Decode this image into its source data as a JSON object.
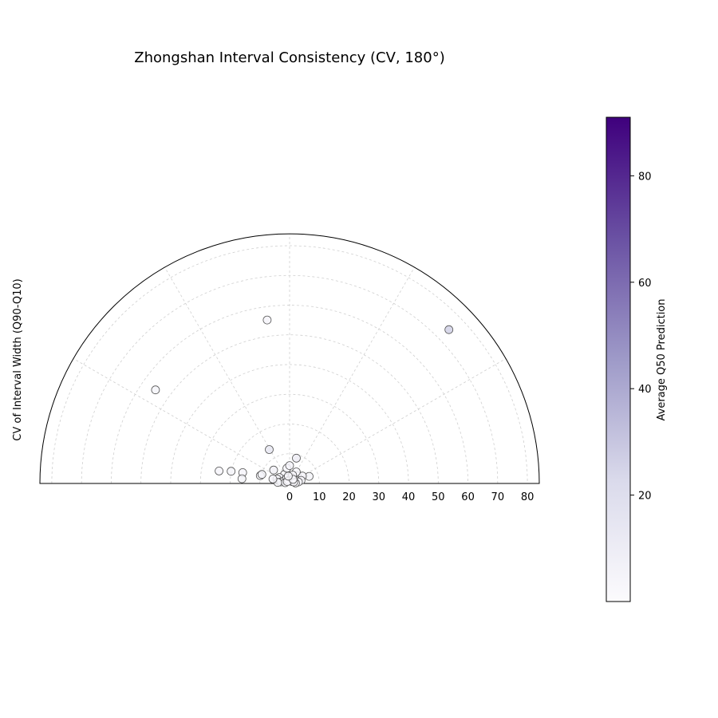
{
  "chart_data": {
    "type": "scatter",
    "projection": "polar-semicircle",
    "title": "Zhongshan Interval Consistency (CV, 180°)",
    "ylabel": "CV of Interval Width (Q90-Q10)",
    "radial_range": [
      0,
      84
    ],
    "radial_ticks": [
      "0",
      "10",
      "20",
      "30",
      "40",
      "50",
      "60",
      "70",
      "80"
    ],
    "theta_range_deg": [
      0,
      180
    ],
    "angular_grid_step_deg": 30,
    "grid": true,
    "colorbar": {
      "label": "Average Q50 Prediction",
      "colormap": "Purples",
      "range": [
        0,
        91
      ],
      "ticks": [
        "20",
        "40",
        "60",
        "80"
      ]
    },
    "points": [
      {
        "theta_deg": 44.0,
        "r": 74.5,
        "c": 26
      },
      {
        "theta_deg": 97.8,
        "r": 55.5,
        "c": 4
      },
      {
        "theta_deg": 145.1,
        "r": 55.0,
        "c": 5
      },
      {
        "theta_deg": 121.0,
        "r": 13.3,
        "c": 14
      },
      {
        "theta_deg": 168.2,
        "r": 20.1,
        "c": 5
      },
      {
        "theta_deg": 170.0,
        "r": 24.1,
        "c": 4
      },
      {
        "theta_deg": 167.0,
        "r": 16.2,
        "c": 4
      },
      {
        "theta_deg": 174.4,
        "r": 16.1,
        "c": 5
      },
      {
        "theta_deg": 165.0,
        "r": 10.2,
        "c": 3
      },
      {
        "theta_deg": 162.0,
        "r": 9.8,
        "c": 5
      },
      {
        "theta_deg": 75.0,
        "r": 8.8,
        "c": 10
      },
      {
        "theta_deg": 45.0,
        "r": 3.6,
        "c": 5
      },
      {
        "theta_deg": 20.0,
        "r": 7.0,
        "c": 5
      },
      {
        "theta_deg": 30.0,
        "r": 5.0,
        "c": 4
      },
      {
        "theta_deg": 120.0,
        "r": 3.5,
        "c": 3
      },
      {
        "theta_deg": 150.0,
        "r": 4.0,
        "c": 4
      },
      {
        "theta_deg": 140.0,
        "r": 7.0,
        "c": 7
      },
      {
        "theta_deg": 100.0,
        "r": 5.2,
        "c": 3
      },
      {
        "theta_deg": 90.0,
        "r": 6.0,
        "c": 4
      },
      {
        "theta_deg": 60.0,
        "r": 4.5,
        "c": 3
      },
      {
        "theta_deg": 160.0,
        "r": 4.5,
        "c": 4
      },
      {
        "theta_deg": 170.0,
        "r": 3.0,
        "c": 6
      },
      {
        "theta_deg": 150.0,
        "r": 2.0,
        "c": 4
      },
      {
        "theta_deg": 30.0,
        "r": 2.2,
        "c": 3
      },
      {
        "theta_deg": 15.0,
        "r": 4.0,
        "c": 4
      },
      {
        "theta_deg": 10.0,
        "r": 3.0,
        "c": 3
      },
      {
        "theta_deg": 60.0,
        "r": 2.0,
        "c": 4
      },
      {
        "theta_deg": 120.0,
        "r": 2.0,
        "c": 4
      },
      {
        "theta_deg": 80.0,
        "r": 1.5,
        "c": 3
      },
      {
        "theta_deg": 170.0,
        "r": 1.5,
        "c": 5
      },
      {
        "theta_deg": 5.0,
        "r": 2.0,
        "c": 3
      },
      {
        "theta_deg": 40.0,
        "r": 1.0,
        "c": 3
      },
      {
        "theta_deg": 110.0,
        "r": 1.0,
        "c": 4
      },
      {
        "theta_deg": 175.0,
        "r": 4.0,
        "c": 5
      },
      {
        "theta_deg": 165.0,
        "r": 5.8,
        "c": 4
      },
      {
        "theta_deg": 20.0,
        "r": 1.5,
        "c": 3
      },
      {
        "theta_deg": 140.0,
        "r": 1.0,
        "c": 3
      },
      {
        "theta_deg": 70.0,
        "r": 3.0,
        "c": 3
      },
      {
        "theta_deg": 50.0,
        "r": 1.8,
        "c": 3
      },
      {
        "theta_deg": 100.0,
        "r": 2.5,
        "c": 3
      }
    ]
  }
}
